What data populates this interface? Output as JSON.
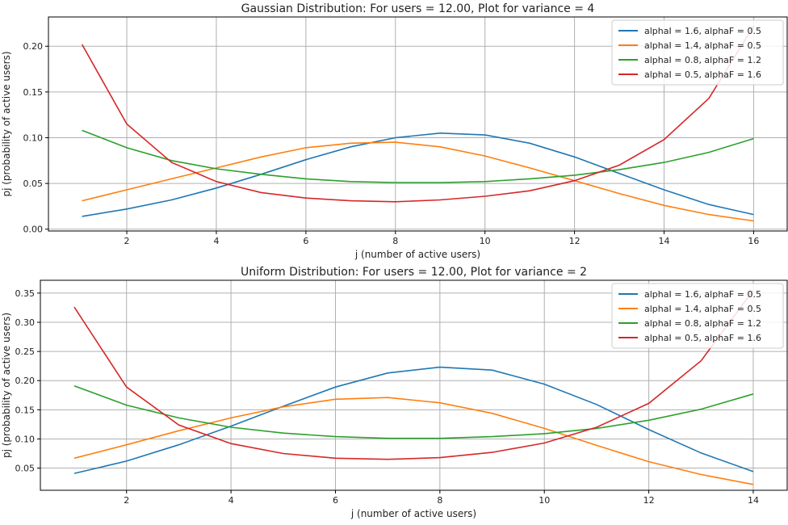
{
  "chart_data": [
    {
      "type": "line",
      "title": "Gaussian Distribution: For users = 12.00, Plot for variance = 4",
      "xlabel": "j (number of active users)",
      "ylabel": "pj (probability of active users)",
      "xlim": [
        0.25,
        16.75
      ],
      "ylim": [
        -0.002,
        0.232
      ],
      "xticks": [
        2,
        4,
        6,
        8,
        10,
        12,
        14,
        16
      ],
      "yticks": [
        0.0,
        0.05,
        0.1,
        0.15,
        0.2
      ],
      "ytick_labels": [
        "0.00",
        "0.05",
        "0.10",
        "0.15",
        "0.20"
      ],
      "grid": true,
      "legend_position": "top-right",
      "x": [
        1,
        2,
        3,
        4,
        5,
        6,
        7,
        8,
        9,
        10,
        11,
        12,
        13,
        14,
        15,
        16
      ],
      "series": [
        {
          "name": "alphaI = 1.6, alphaF = 0.5",
          "color": "#1f77b4",
          "values": [
            0.014,
            0.022,
            0.032,
            0.045,
            0.06,
            0.076,
            0.09,
            0.1,
            0.105,
            0.103,
            0.094,
            0.079,
            0.061,
            0.043,
            0.027,
            0.016
          ]
        },
        {
          "name": "alphaI = 1.4, alphaF = 0.5",
          "color": "#ff7f0e",
          "values": [
            0.031,
            0.043,
            0.055,
            0.067,
            0.079,
            0.089,
            0.094,
            0.095,
            0.09,
            0.08,
            0.067,
            0.053,
            0.039,
            0.026,
            0.016,
            0.009
          ]
        },
        {
          "name": "alphaI = 0.8, alphaF = 1.2",
          "color": "#2ca02c",
          "values": [
            0.108,
            0.089,
            0.075,
            0.066,
            0.06,
            0.055,
            0.052,
            0.051,
            0.051,
            0.052,
            0.055,
            0.059,
            0.065,
            0.073,
            0.084,
            0.099
          ]
        },
        {
          "name": "alphaI = 0.5, alphaF = 1.6",
          "color": "#d62728",
          "values": [
            0.202,
            0.115,
            0.073,
            0.052,
            0.04,
            0.034,
            0.031,
            0.03,
            0.032,
            0.036,
            0.042,
            0.053,
            0.07,
            0.098,
            0.143,
            0.222
          ]
        }
      ]
    },
    {
      "type": "line",
      "title": "Uniform Distribution: For users = 12.00, Plot for variance = 2",
      "xlabel": "j (number of active users)",
      "ylabel": "pj (probability of active users)",
      "xlim": [
        0.35,
        14.65
      ],
      "ylim": [
        0.012,
        0.372
      ],
      "xticks": [
        2,
        4,
        6,
        8,
        10,
        12,
        14
      ],
      "yticks": [
        0.05,
        0.1,
        0.15,
        0.2,
        0.25,
        0.3,
        0.35
      ],
      "ytick_labels": [
        "0.05",
        "0.10",
        "0.15",
        "0.20",
        "0.25",
        "0.30",
        "0.35"
      ],
      "grid": true,
      "legend_position": "top-right",
      "x": [
        1,
        2,
        3,
        4,
        5,
        6,
        7,
        8,
        9,
        10,
        11,
        12,
        13,
        14
      ],
      "series": [
        {
          "name": "alphaI = 1.6, alphaF = 0.5",
          "color": "#1f77b4",
          "values": [
            0.041,
            0.062,
            0.09,
            0.122,
            0.156,
            0.189,
            0.213,
            0.223,
            0.218,
            0.194,
            0.159,
            0.116,
            0.076,
            0.044
          ]
        },
        {
          "name": "alphaI = 1.4, alphaF = 0.5",
          "color": "#ff7f0e",
          "values": [
            0.067,
            0.09,
            0.114,
            0.136,
            0.155,
            0.168,
            0.171,
            0.162,
            0.144,
            0.118,
            0.089,
            0.061,
            0.039,
            0.022
          ]
        },
        {
          "name": "alphaI = 0.8, alphaF = 1.2",
          "color": "#2ca02c",
          "values": [
            0.191,
            0.158,
            0.136,
            0.12,
            0.11,
            0.104,
            0.101,
            0.101,
            0.104,
            0.109,
            0.118,
            0.132,
            0.151,
            0.177
          ]
        },
        {
          "name": "alphaI = 0.5, alphaF = 1.6",
          "color": "#d62728",
          "values": [
            0.326,
            0.189,
            0.124,
            0.092,
            0.075,
            0.067,
            0.065,
            0.068,
            0.077,
            0.093,
            0.12,
            0.161,
            0.234,
            0.355
          ]
        }
      ]
    }
  ]
}
